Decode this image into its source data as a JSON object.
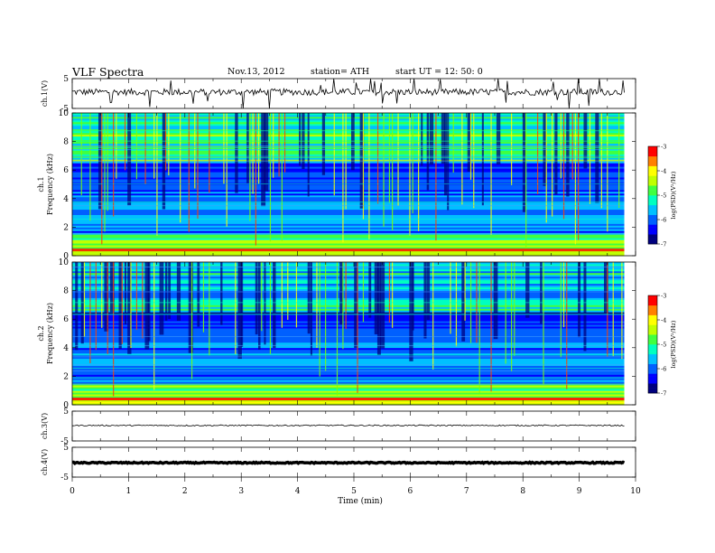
{
  "header": {
    "title": "VLF  Spectra",
    "date": "Nov.13, 2012",
    "station": "station= ATH",
    "start": "start  UT =    12: 50: 0"
  },
  "chart_data": [
    {
      "type": "line",
      "name": "ch1-waveform",
      "ylabel": "ch.1(V)",
      "ylim": [
        -5,
        5
      ],
      "yticks": [
        "5",
        "-5"
      ],
      "xlim": [
        0,
        10
      ],
      "data_extent": [
        0,
        9.8
      ]
    },
    {
      "type": "heatmap",
      "name": "ch1-spectrogram",
      "ylabel_line1": "ch.1",
      "ylabel_line2": "Frequency  (kHz)",
      "ylim": [
        0,
        10
      ],
      "yticks": [
        "0",
        "2",
        "4",
        "6",
        "8",
        "10"
      ],
      "xlim": [
        0,
        10
      ],
      "data_extent": [
        0,
        9.8
      ],
      "colorbar": {
        "label": "log(PSD)(V²/Hz)",
        "range": [
          -7,
          -3
        ],
        "ticks": [
          "-3",
          "-4",
          "-5",
          "-6",
          "-7"
        ]
      }
    },
    {
      "type": "heatmap",
      "name": "ch2-spectrogram",
      "ylabel_line1": "ch.2",
      "ylabel_line2": "Frequency  (kHz)",
      "ylim": [
        0,
        10
      ],
      "yticks": [
        "0",
        "2",
        "4",
        "6",
        "8",
        "10"
      ],
      "xlim": [
        0,
        10
      ],
      "data_extent": [
        0,
        9.8
      ],
      "colorbar": {
        "label": "log(PSD)(V²/Hz)",
        "range": [
          -7,
          -3
        ],
        "ticks": [
          "-3",
          "-4",
          "-5",
          "-6",
          "-7"
        ]
      }
    },
    {
      "type": "line",
      "name": "ch3-waveform",
      "ylabel": "ch.3(V)",
      "ylim": [
        -5,
        5
      ],
      "yticks": [
        "5",
        "-5"
      ],
      "xlim": [
        0,
        10
      ],
      "data_extent": [
        0,
        9.8
      ]
    },
    {
      "type": "line",
      "name": "ch4-waveform",
      "ylabel": "ch.4(V)",
      "ylim": [
        -5,
        5
      ],
      "yticks": [
        "5",
        "-5"
      ],
      "xlim": [
        0,
        10
      ],
      "data_extent": [
        0,
        9.8
      ]
    }
  ],
  "xaxis": {
    "label": "Time  (min)",
    "ticks": [
      "0",
      "1",
      "2",
      "3",
      "4",
      "5",
      "6",
      "7",
      "8",
      "9",
      "10"
    ]
  },
  "colors": {
    "colormap": [
      "#00007f",
      "#0000ff",
      "#0080ff",
      "#00e0e0",
      "#00ff80",
      "#80ff00",
      "#ffff00",
      "#ff8000",
      "#ff0000",
      "#ffffff"
    ],
    "axis": "#000000"
  }
}
